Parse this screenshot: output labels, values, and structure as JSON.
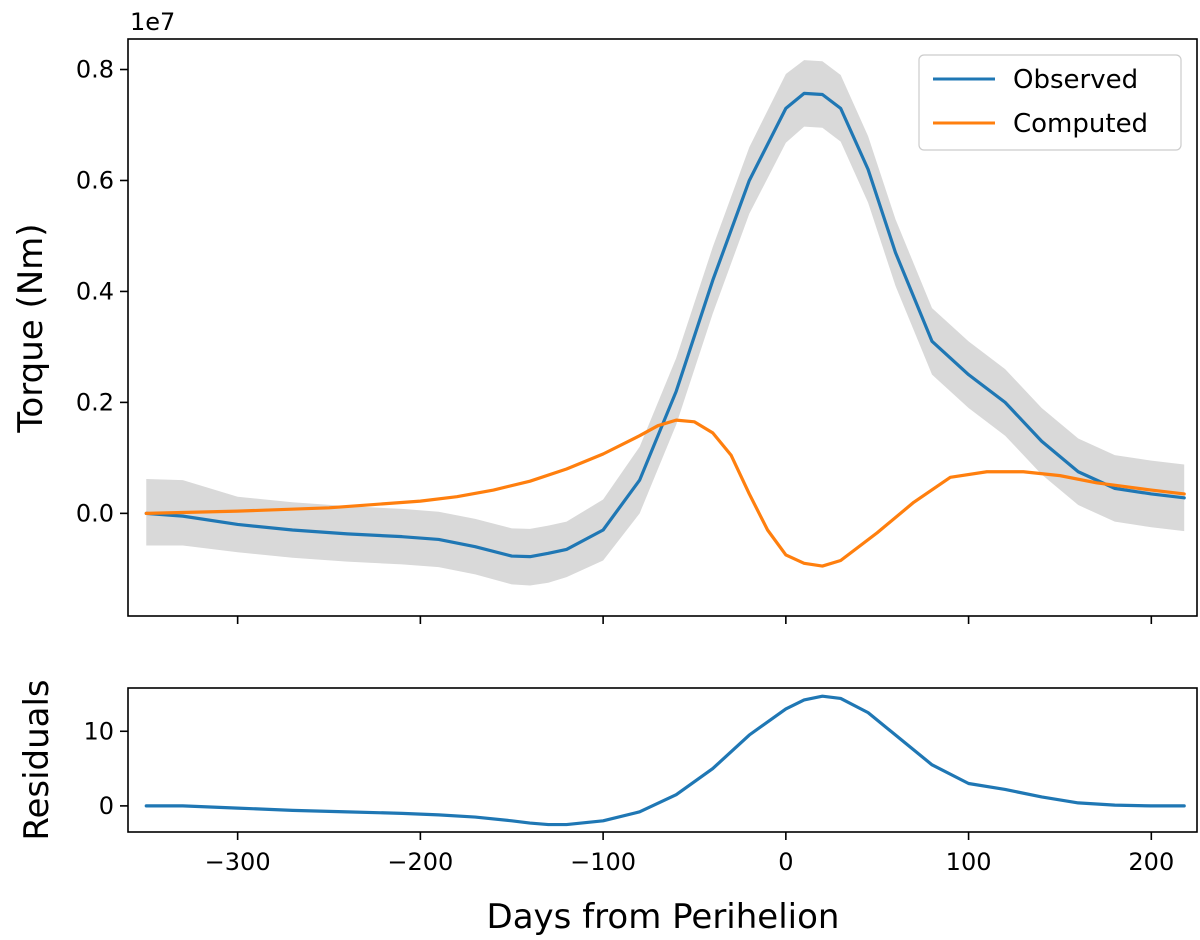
{
  "chart_data": [
    {
      "type": "line",
      "title": "",
      "xlabel": "",
      "ylabel": "Torque (Nm)",
      "y_offset_label": "1e7",
      "xlim": [
        -360,
        225
      ],
      "ylim": [
        -0.185,
        0.855
      ],
      "y_units_scale": "1e7",
      "yticks": [
        0.0,
        0.2,
        0.4,
        0.6,
        0.8
      ],
      "ytick_labels": [
        "0.0",
        "0.2",
        "0.4",
        "0.6",
        "0.8"
      ],
      "xticks": [
        -300,
        -200,
        -100,
        0,
        100,
        200
      ],
      "grid": false,
      "legend_position": "top-right",
      "legend": [
        "Observed",
        "Computed"
      ],
      "colors": {
        "observed": "#1f77b4",
        "computed": "#ff7f0e",
        "band": "#d9d9d9"
      },
      "series": [
        {
          "name": "Observed",
          "x": [
            -350,
            -330,
            -300,
            -270,
            -240,
            -210,
            -190,
            -170,
            -150,
            -140,
            -130,
            -120,
            -100,
            -80,
            -60,
            -40,
            -20,
            0,
            10,
            20,
            30,
            45,
            60,
            80,
            100,
            120,
            140,
            160,
            180,
            200,
            218
          ],
          "y": [
            0.0,
            -0.005,
            -0.02,
            -0.03,
            -0.037,
            -0.042,
            -0.047,
            -0.06,
            -0.077,
            -0.078,
            -0.072,
            -0.065,
            -0.03,
            0.06,
            0.22,
            0.42,
            0.6,
            0.73,
            0.757,
            0.755,
            0.73,
            0.62,
            0.47,
            0.31,
            0.25,
            0.2,
            0.13,
            0.075,
            0.045,
            0.035,
            0.028
          ]
        },
        {
          "name": "Observed uncertainty band",
          "x": [
            -350,
            -330,
            -300,
            -270,
            -240,
            -210,
            -190,
            -170,
            -150,
            -140,
            -130,
            -120,
            -100,
            -80,
            -60,
            -40,
            -20,
            0,
            10,
            20,
            30,
            45,
            60,
            80,
            100,
            120,
            140,
            160,
            180,
            200,
            218
          ],
          "lower": [
            -0.058,
            -0.058,
            -0.07,
            -0.08,
            -0.087,
            -0.092,
            -0.097,
            -0.11,
            -0.128,
            -0.13,
            -0.125,
            -0.115,
            -0.085,
            0.0,
            0.16,
            0.36,
            0.54,
            0.668,
            0.697,
            0.695,
            0.67,
            0.56,
            0.41,
            0.25,
            0.19,
            0.14,
            0.07,
            0.015,
            -0.015,
            -0.025,
            -0.032
          ],
          "upper": [
            0.062,
            0.06,
            0.03,
            0.02,
            0.013,
            0.008,
            0.003,
            -0.01,
            -0.027,
            -0.028,
            -0.022,
            -0.015,
            0.025,
            0.12,
            0.28,
            0.48,
            0.66,
            0.792,
            0.817,
            0.815,
            0.79,
            0.68,
            0.53,
            0.37,
            0.31,
            0.26,
            0.19,
            0.135,
            0.105,
            0.095,
            0.088
          ]
        },
        {
          "name": "Computed",
          "x": [
            -350,
            -300,
            -250,
            -200,
            -180,
            -160,
            -140,
            -120,
            -100,
            -80,
            -70,
            -60,
            -50,
            -40,
            -30,
            -20,
            -10,
            0,
            10,
            20,
            30,
            50,
            70,
            90,
            110,
            130,
            150,
            170,
            200,
            218
          ],
          "y": [
            0.0,
            0.004,
            0.01,
            0.022,
            0.03,
            0.042,
            0.058,
            0.08,
            0.107,
            0.14,
            0.158,
            0.168,
            0.165,
            0.145,
            0.105,
            0.035,
            -0.03,
            -0.075,
            -0.09,
            -0.095,
            -0.085,
            -0.035,
            0.02,
            0.065,
            0.075,
            0.075,
            0.068,
            0.055,
            0.042,
            0.035
          ]
        }
      ]
    },
    {
      "type": "line",
      "title": "",
      "xlabel": "Days from Perihelion",
      "ylabel": "Residuals",
      "xlim": [
        -360,
        225
      ],
      "ylim": [
        -3.5,
        15.8
      ],
      "yticks": [
        0,
        10
      ],
      "ytick_labels": [
        "0",
        "10"
      ],
      "xticks": [
        -300,
        -200,
        -100,
        0,
        100,
        200
      ],
      "xtick_labels": [
        "−300",
        "−200",
        "−100",
        "0",
        "100",
        "200"
      ],
      "grid": false,
      "series": [
        {
          "name": "Residuals",
          "x": [
            -350,
            -330,
            -300,
            -270,
            -240,
            -210,
            -190,
            -170,
            -150,
            -140,
            -130,
            -120,
            -100,
            -80,
            -60,
            -40,
            -20,
            0,
            10,
            20,
            30,
            45,
            60,
            80,
            100,
            120,
            140,
            160,
            180,
            200,
            218
          ],
          "y": [
            0.0,
            0.0,
            -0.3,
            -0.6,
            -0.8,
            -1.0,
            -1.2,
            -1.5,
            -2.0,
            -2.3,
            -2.5,
            -2.5,
            -2.0,
            -0.8,
            1.5,
            5.0,
            9.5,
            13.0,
            14.2,
            14.7,
            14.4,
            12.5,
            9.5,
            5.5,
            3.0,
            2.2,
            1.2,
            0.4,
            0.1,
            0.0,
            0.0
          ]
        }
      ]
    }
  ]
}
